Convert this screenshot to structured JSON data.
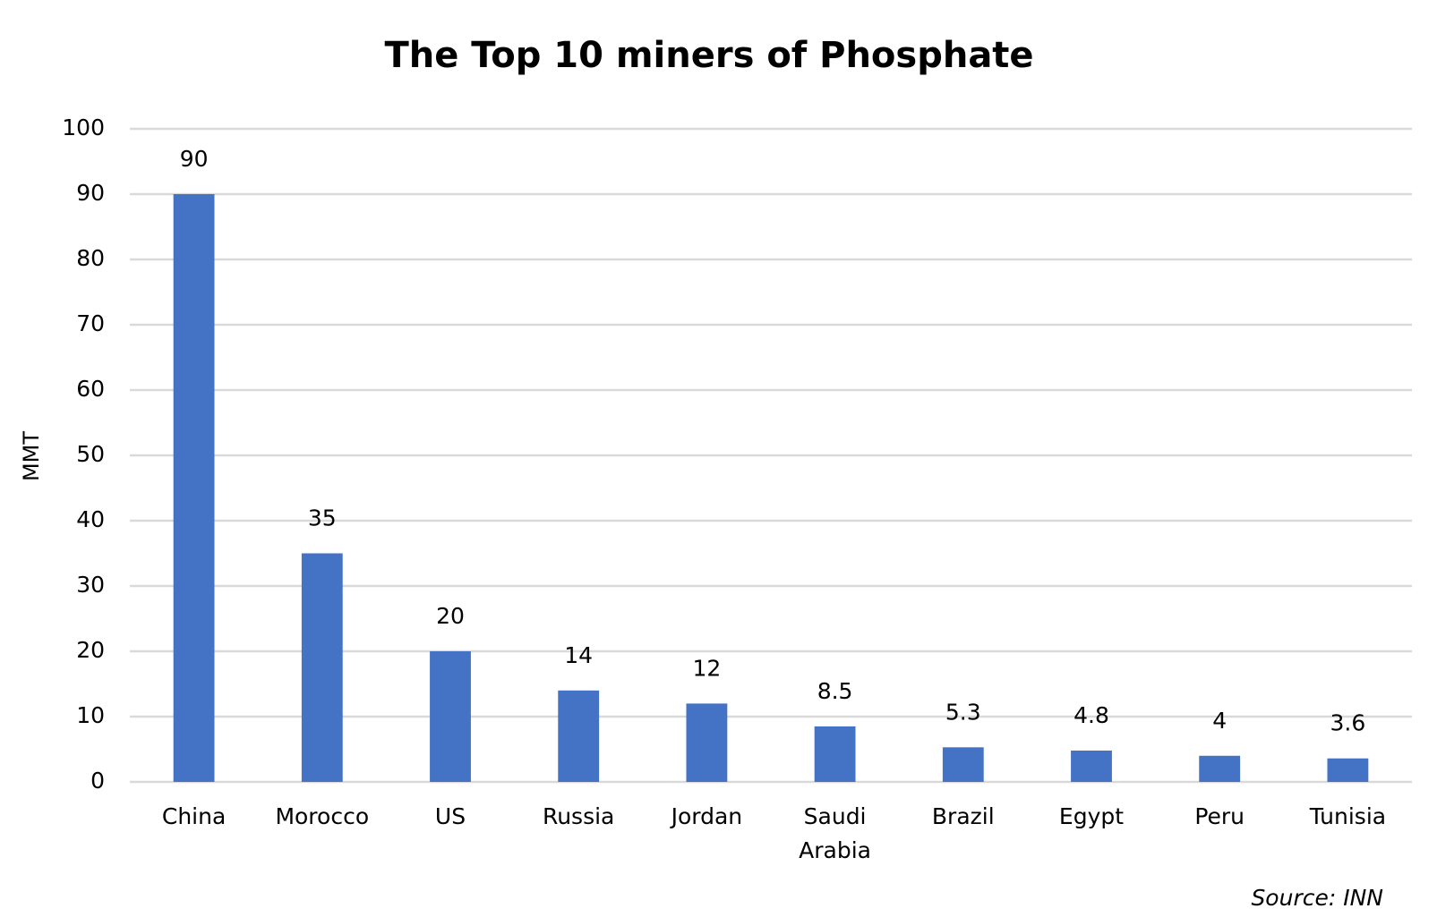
{
  "chart_data": {
    "type": "bar",
    "title": "The Top 10 miners of Phosphate",
    "y_label": "MMT",
    "source": "Source: INN",
    "categories": [
      "China",
      "Morocco",
      "US",
      "Russia",
      "Jordan",
      "Saudi Arabia",
      "Brazil",
      "Egypt",
      "Peru",
      "Tunisia"
    ],
    "values": [
      90,
      35,
      20,
      14,
      12,
      8.5,
      5.3,
      4.8,
      4,
      3.6
    ],
    "color": "#4472c4",
    "ylim": [
      0,
      100
    ],
    "yticks": [
      0,
      10,
      20,
      30,
      40,
      50,
      60,
      70,
      80,
      90,
      100
    ],
    "grid": true
  }
}
